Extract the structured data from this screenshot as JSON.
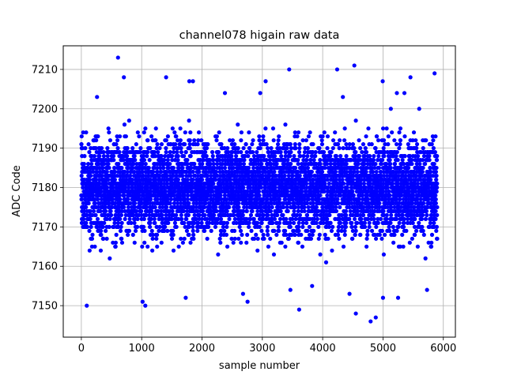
{
  "chart_data": {
    "type": "scatter",
    "title": "channel078 higain raw data",
    "xlabel": "sample number",
    "ylabel": "ADC Code",
    "xlim": [
      -300,
      6200
    ],
    "ylim": [
      7142,
      7216
    ],
    "xticks": [
      0,
      1000,
      2000,
      3000,
      4000,
      5000,
      6000
    ],
    "yticks": [
      7150,
      7160,
      7170,
      7180,
      7190,
      7200,
      7210
    ],
    "grid": true,
    "marker_color": "#0000ff",
    "series": [
      {
        "sample_count": 5900,
        "center": 7180,
        "typical_range": [
          7160,
          7200
        ],
        "full_range": [
          7146,
          7213
        ],
        "points": [
          [
            608,
            7213
          ],
          [
            4525,
            7211
          ],
          [
            5855,
            7209
          ],
          [
            3445,
            7210
          ],
          [
            4240,
            7210
          ],
          [
            705,
            7208
          ],
          [
            1405,
            7208
          ],
          [
            1790,
            7207
          ],
          [
            1850,
            7207
          ],
          [
            3055,
            7207
          ],
          [
            4995,
            7207
          ],
          [
            5455,
            7208
          ],
          [
            90,
            7150
          ],
          [
            1015,
            7151
          ],
          [
            1060,
            7150
          ],
          [
            1730,
            7152
          ],
          [
            2680,
            7153
          ],
          [
            2755,
            7151
          ],
          [
            3610,
            7149
          ],
          [
            3825,
            7155
          ],
          [
            4445,
            7153
          ],
          [
            4550,
            7148
          ],
          [
            4795,
            7146
          ],
          [
            4880,
            7147
          ],
          [
            5000,
            7152
          ],
          [
            5250,
            7152
          ],
          [
            5730,
            7154
          ],
          [
            3465,
            7154
          ],
          [
            260,
            7203
          ],
          [
            2380,
            7204
          ],
          [
            2965,
            7204
          ],
          [
            4335,
            7203
          ],
          [
            5600,
            7200
          ],
          [
            5230,
            7204
          ],
          [
            5355,
            7204
          ]
        ]
      }
    ]
  }
}
